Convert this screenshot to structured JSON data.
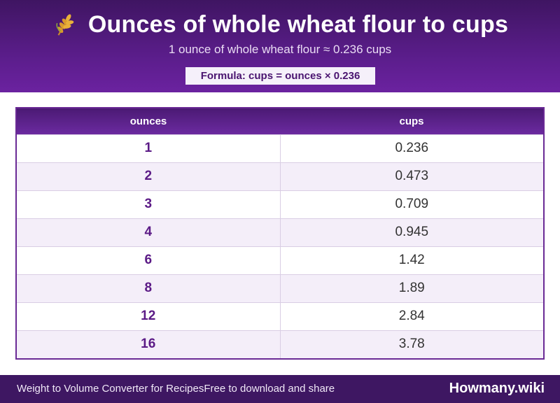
{
  "header": {
    "icon": "wheat-icon",
    "title": "Ounces of whole wheat flour to cups",
    "subtitle": "1 ounce of whole wheat flour ≈ 0.236 cups",
    "formula": "Formula: cups = ounces × 0.236"
  },
  "table": {
    "columns": [
      "ounces",
      "cups"
    ],
    "rows": [
      [
        "1",
        "0.236"
      ],
      [
        "2",
        "0.473"
      ],
      [
        "3",
        "0.709"
      ],
      [
        "4",
        "0.945"
      ],
      [
        "6",
        "1.42"
      ],
      [
        "8",
        "1.89"
      ],
      [
        "12",
        "2.84"
      ],
      [
        "16",
        "3.78"
      ]
    ]
  },
  "footer": {
    "left_text": "Weight to Volume Converter for Recipes",
    "middle_text": "Free to download and share",
    "brand": "Howmany.wiki"
  },
  "colors": {
    "header_purple": "#5a1d8a",
    "footer_purple": "#3e1762",
    "accent_text": "#5b1a86",
    "row_alt": "#f4eef9"
  }
}
